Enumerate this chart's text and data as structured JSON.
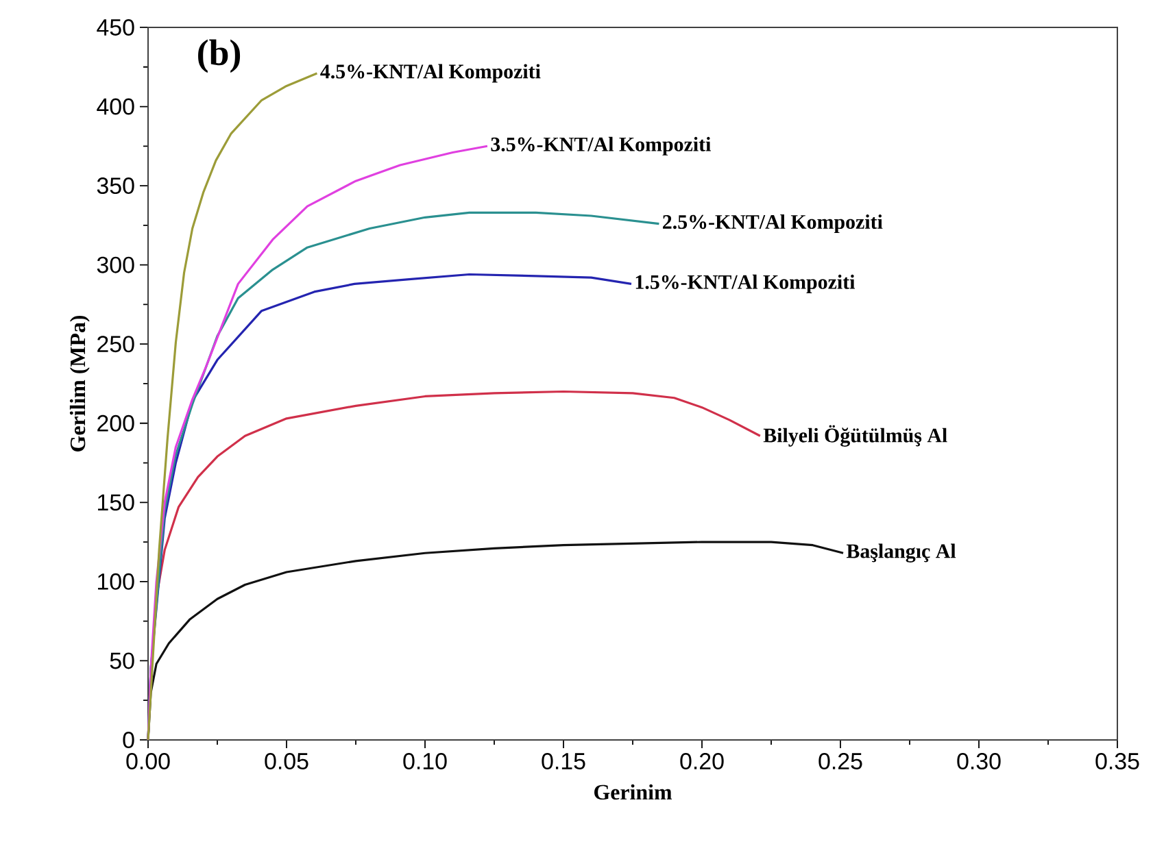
{
  "chart_data": {
    "type": "line",
    "xlabel": "Gerinim",
    "ylabel": "Gerilim (MPa)",
    "annotations": [
      "(b)"
    ],
    "xlim": [
      0,
      0.35
    ],
    "ylim": [
      0,
      450
    ],
    "xticks": [
      {
        "value": 0,
        "label": "0.00"
      },
      {
        "value": 0.05,
        "label": "0.05"
      },
      {
        "value": 0.1,
        "label": "0.10"
      },
      {
        "value": 0.15,
        "label": "0.15"
      },
      {
        "value": 0.2,
        "label": "0.20"
      },
      {
        "value": 0.25,
        "label": "0.25"
      },
      {
        "value": 0.3,
        "label": "0.30"
      },
      {
        "value": 0.35,
        "label": "0.35"
      }
    ],
    "yticks": [
      0,
      50,
      100,
      150,
      200,
      250,
      300,
      350,
      400,
      450
    ],
    "series": [
      {
        "name": "Başlangıç Al",
        "color": "#111111",
        "x": [
          0,
          0.001,
          0.003,
          0.0075,
          0.015,
          0.025,
          0.035,
          0.05,
          0.075,
          0.1,
          0.125,
          0.15,
          0.175,
          0.2,
          0.225,
          0.24,
          0.251
        ],
        "values": [
          0,
          30,
          48,
          61,
          76,
          89,
          98,
          106,
          113,
          118,
          121,
          123,
          124,
          125,
          125,
          123,
          118
        ]
      },
      {
        "name": "Bilyeli Öğütülmüş Al",
        "color": "#d0304a",
        "x": [
          0,
          0.001,
          0.003,
          0.006,
          0.011,
          0.018,
          0.025,
          0.035,
          0.05,
          0.075,
          0.1,
          0.125,
          0.15,
          0.175,
          0.19,
          0.2,
          0.21,
          0.221
        ],
        "values": [
          0,
          40,
          90,
          120,
          147,
          166,
          179,
          192,
          203,
          211,
          217,
          219,
          220,
          219,
          216,
          210,
          202,
          192
        ]
      },
      {
        "name": "1.5%-KNT/Al Kompoziti",
        "color": "#2424b0",
        "x": [
          0,
          0.001,
          0.003,
          0.006,
          0.01,
          0.016,
          0.025,
          0.041,
          0.06,
          0.0745,
          0.095,
          0.116,
          0.14,
          0.16,
          0.1745
        ],
        "values": [
          0,
          45,
          null,
          140,
          175,
          214,
          240,
          271,
          283,
          288,
          291,
          294,
          293,
          292,
          288
        ]
      },
      {
        "name": "2.5%-KNT/Al Kompoziti",
        "color": "#2a9090",
        "x": [
          0,
          0.001,
          0.003,
          0.006,
          0.01,
          0.016,
          0.025,
          0.0325,
          0.045,
          0.0575,
          0.08,
          0.1,
          0.116,
          0.14,
          0.16,
          0.1845
        ],
        "values": [
          0,
          45,
          null,
          145,
          180,
          212,
          255,
          279,
          297,
          311,
          323,
          330,
          333,
          333,
          331,
          326
        ]
      },
      {
        "name": "3.5%-KNT/Al Kompoziti",
        "color": "#e040e0",
        "x": [
          0,
          0.001,
          0.003,
          0.006,
          0.01,
          0.016,
          0.021,
          0.0325,
          0.045,
          0.0575,
          0.075,
          0.091,
          0.11,
          0.1225
        ],
        "values": [
          0,
          45,
          100,
          150,
          185,
          215,
          236,
          288,
          316,
          337,
          353,
          363,
          371,
          375
        ]
      },
      {
        "name": "4.5%-KNT/Al Kompoziti",
        "color": "#9c9c38",
        "x": [
          0,
          0.002,
          0.004,
          0.007,
          0.01,
          0.013,
          0.016,
          0.02,
          0.0245,
          0.03,
          0.041,
          0.05,
          0.061
        ],
        "values": [
          0,
          60,
          120,
          190,
          251,
          295,
          323,
          346,
          366,
          383,
          404,
          413,
          421
        ]
      }
    ]
  }
}
